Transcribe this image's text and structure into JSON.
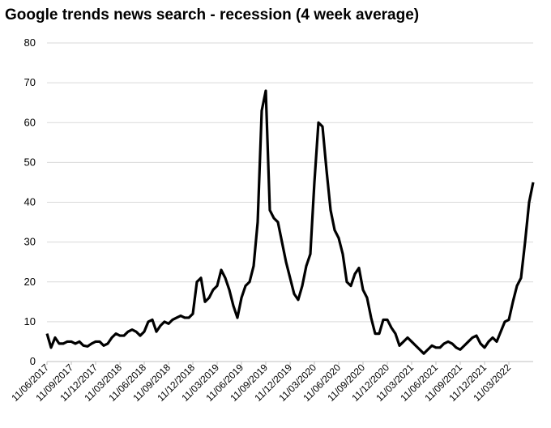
{
  "chart_data": {
    "type": "line",
    "title": "Google trends news search - recession (4 week average)",
    "categories": [
      "11/06/2017",
      null,
      null,
      null,
      null,
      null,
      "11/09/2017",
      null,
      null,
      null,
      null,
      null,
      "11/12/2017",
      null,
      null,
      null,
      null,
      null,
      "11/03/2018",
      null,
      null,
      null,
      null,
      null,
      "11/06/2018",
      null,
      null,
      null,
      null,
      null,
      "11/09/2018",
      null,
      null,
      null,
      null,
      null,
      "11/12/2018",
      null,
      null,
      null,
      null,
      null,
      "11/03/2019",
      null,
      null,
      null,
      null,
      null,
      "11/06/2019",
      null,
      null,
      null,
      null,
      null,
      "11/09/2019",
      null,
      null,
      null,
      null,
      null,
      "11/12/2019",
      null,
      null,
      null,
      null,
      null,
      "11/03/2020",
      null,
      null,
      null,
      null,
      null,
      "11/06/2020",
      null,
      null,
      null,
      null,
      null,
      "11/09/2020",
      null,
      null,
      null,
      null,
      null,
      "11/12/2020",
      null,
      null,
      null,
      null,
      null,
      "11/03/2021",
      null,
      null,
      null,
      null,
      null,
      "11/06/2021",
      null,
      null,
      null,
      null,
      null,
      "11/09/2021",
      null,
      null,
      null,
      null,
      null,
      "11/12/2021",
      null,
      null,
      null,
      null,
      null,
      "11/03/2022",
      null,
      null,
      null,
      null,
      null,
      null
    ],
    "values": [
      7,
      3.5,
      6,
      4.5,
      4.5,
      5,
      5,
      4.5,
      5,
      4,
      3.8,
      4.5,
      5,
      5,
      4,
      4.5,
      6,
      7,
      6.5,
      6.5,
      7.5,
      8,
      7.5,
      6.5,
      7.5,
      10,
      10.5,
      7.5,
      9,
      10,
      9.5,
      10.5,
      11,
      11.5,
      11,
      11,
      12,
      20,
      21,
      15,
      16,
      18,
      19,
      23,
      21,
      18,
      14,
      11,
      16,
      19,
      20,
      24,
      35,
      63,
      68,
      38,
      36,
      35,
      30,
      25,
      21,
      17,
      15.5,
      19,
      24,
      27,
      45,
      60,
      59,
      48,
      38,
      33,
      31,
      27,
      20,
      19,
      22,
      23.5,
      18,
      16,
      11,
      7,
      7,
      10.5,
      10.5,
      8.5,
      7,
      4,
      5,
      6,
      5,
      4,
      3,
      2,
      3,
      4,
      3.5,
      3.5,
      4.5,
      5,
      4.5,
      3.5,
      3,
      4,
      5,
      6,
      6.5,
      4.5,
      3.5,
      5,
      6,
      5,
      7.5,
      10,
      10.5,
      15,
      19,
      21,
      30,
      40,
      45
    ],
    "color": "#000000",
    "ylim": [
      0,
      80
    ],
    "yticks": [
      0,
      10,
      20,
      30,
      40,
      50,
      60,
      70,
      80
    ],
    "grid": true
  }
}
